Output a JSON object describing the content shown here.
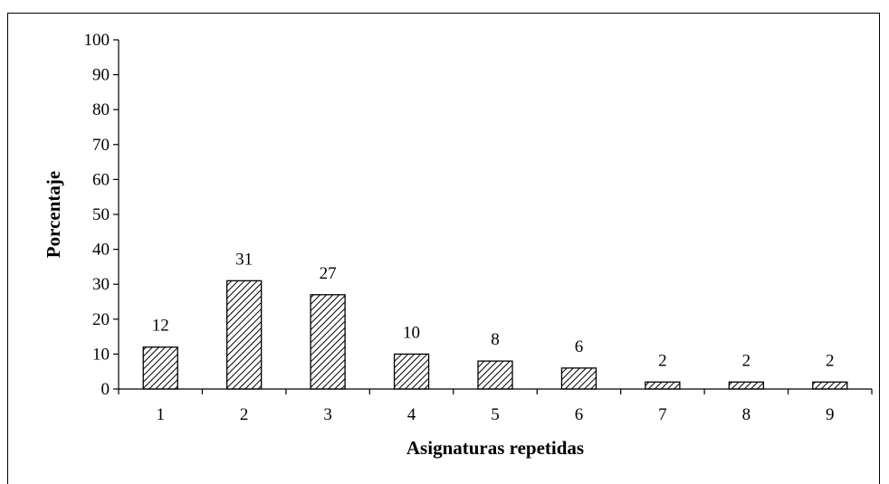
{
  "chart_data": {
    "type": "bar",
    "categories": [
      "1",
      "2",
      "3",
      "4",
      "5",
      "6",
      "7",
      "8",
      "9"
    ],
    "values": [
      12,
      31,
      27,
      10,
      8,
      6,
      2,
      2,
      2
    ],
    "data_labels": [
      "12",
      "31",
      "27",
      "10",
      "8",
      "6",
      "2",
      "2",
      "2"
    ],
    "xlabel": "Asignaturas repetidas",
    "ylabel": "Porcentaje",
    "ylim": [
      0,
      100
    ],
    "yticks": [
      "0",
      "10",
      "20",
      "30",
      "40",
      "50",
      "60",
      "70",
      "80",
      "90",
      "100"
    ],
    "grid": false,
    "legend": "none",
    "bar_fill": "diagonal-hatch",
    "colors": {
      "bar_stroke": "#000000",
      "hatch": "#000000",
      "background": "#ffffff"
    }
  }
}
